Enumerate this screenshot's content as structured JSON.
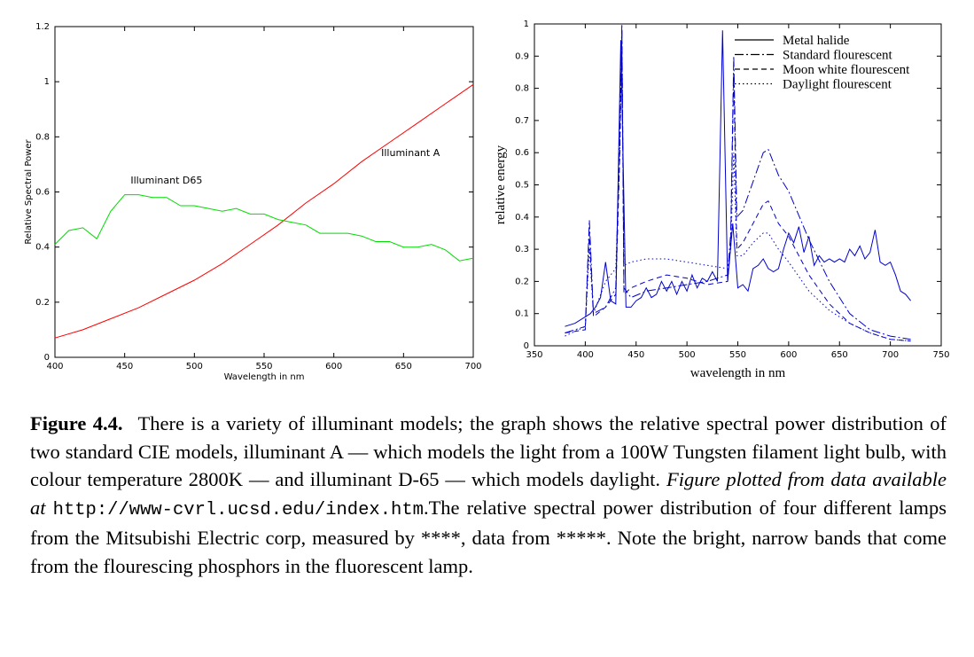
{
  "chart_data": [
    {
      "type": "line",
      "title": "",
      "xlabel": "Wavelength in nm",
      "ylabel": "Relative Spectral Power",
      "xlim": [
        400,
        700
      ],
      "ylim": [
        0,
        1.2
      ],
      "xticks": [
        "400",
        "450",
        "500",
        "550",
        "600",
        "650",
        "700"
      ],
      "yticks": [
        "0",
        "0.2",
        "0.4",
        "0.6",
        "0.8",
        "1",
        "1.2"
      ],
      "grid": false,
      "series": [
        {
          "name": "Illuminant A",
          "color": "#ff0000",
          "x": [
            400,
            420,
            440,
            460,
            480,
            500,
            520,
            540,
            560,
            580,
            600,
            620,
            640,
            660,
            680,
            700
          ],
          "y": [
            0.07,
            0.1,
            0.14,
            0.18,
            0.23,
            0.28,
            0.34,
            0.41,
            0.48,
            0.56,
            0.63,
            0.71,
            0.78,
            0.85,
            0.92,
            0.99
          ]
        },
        {
          "name": "Illuminant D65",
          "color": "#00dd00",
          "x": [
            400,
            410,
            420,
            430,
            440,
            450,
            460,
            470,
            480,
            490,
            500,
            510,
            520,
            530,
            540,
            550,
            560,
            570,
            580,
            590,
            600,
            610,
            620,
            630,
            640,
            650,
            660,
            670,
            680,
            690,
            700
          ],
          "y": [
            0.41,
            0.46,
            0.47,
            0.43,
            0.53,
            0.59,
            0.59,
            0.58,
            0.58,
            0.55,
            0.55,
            0.54,
            0.53,
            0.54,
            0.52,
            0.52,
            0.5,
            0.49,
            0.48,
            0.45,
            0.45,
            0.45,
            0.44,
            0.42,
            0.42,
            0.4,
            0.4,
            0.41,
            0.39,
            0.35,
            0.36
          ]
        }
      ],
      "annotations": [
        {
          "text": "Illuminant D65",
          "x": 480,
          "y": 0.63
        },
        {
          "text": "Illuminant A",
          "x": 655,
          "y": 0.73
        }
      ]
    },
    {
      "type": "line",
      "title": "",
      "xlabel": "wavelength in nm",
      "ylabel": "relative energy",
      "xlim": [
        350,
        750
      ],
      "ylim": [
        0,
        1
      ],
      "xticks": [
        "350",
        "400",
        "450",
        "500",
        "550",
        "600",
        "650",
        "700",
        "750"
      ],
      "yticks": [
        "0",
        "0.1",
        "0.2",
        "0.3",
        "0.4",
        "0.5",
        "0.6",
        "0.7",
        "0.8",
        "0.9",
        "1"
      ],
      "grid": false,
      "legend": "top-right",
      "series": [
        {
          "name": "Metal halide",
          "color": "#0000cc",
          "dash": "solid",
          "x": [
            380,
            390,
            400,
            405,
            410,
            415,
            420,
            425,
            430,
            435,
            440,
            445,
            450,
            455,
            460,
            465,
            470,
            475,
            480,
            485,
            490,
            495,
            500,
            505,
            510,
            515,
            520,
            525,
            530,
            535,
            540,
            545,
            550,
            555,
            560,
            565,
            570,
            575,
            580,
            585,
            590,
            595,
            600,
            605,
            610,
            615,
            620,
            625,
            630,
            635,
            640,
            645,
            650,
            655,
            660,
            665,
            670,
            675,
            680,
            685,
            690,
            695,
            700,
            705,
            710,
            715,
            720
          ],
          "y": [
            0.06,
            0.07,
            0.09,
            0.1,
            0.12,
            0.15,
            0.26,
            0.14,
            0.13,
            0.95,
            0.12,
            0.12,
            0.14,
            0.15,
            0.18,
            0.15,
            0.16,
            0.2,
            0.17,
            0.2,
            0.16,
            0.2,
            0.17,
            0.22,
            0.18,
            0.21,
            0.2,
            0.23,
            0.2,
            0.98,
            0.2,
            0.38,
            0.18,
            0.19,
            0.17,
            0.24,
            0.25,
            0.27,
            0.24,
            0.23,
            0.24,
            0.3,
            0.35,
            0.32,
            0.37,
            0.29,
            0.34,
            0.25,
            0.28,
            0.26,
            0.27,
            0.26,
            0.27,
            0.26,
            0.3,
            0.28,
            0.31,
            0.27,
            0.29,
            0.36,
            0.26,
            0.25,
            0.26,
            0.22,
            0.17,
            0.16,
            0.14
          ]
        },
        {
          "name": "Standard flourescent",
          "color": "#0000cc",
          "dash": "dashdot",
          "x": [
            380,
            400,
            404,
            408,
            420,
            430,
            434,
            436,
            438,
            445,
            460,
            480,
            500,
            520,
            540,
            543,
            546,
            549,
            555,
            565,
            575,
            580,
            590,
            600,
            620,
            640,
            660,
            680,
            700,
            720
          ],
          "y": [
            0.04,
            0.06,
            0.39,
            0.1,
            0.12,
            0.18,
            0.7,
            1.0,
            0.18,
            0.15,
            0.17,
            0.18,
            0.19,
            0.2,
            0.22,
            0.35,
            0.9,
            0.4,
            0.42,
            0.51,
            0.6,
            0.61,
            0.53,
            0.48,
            0.33,
            0.2,
            0.1,
            0.05,
            0.03,
            0.02
          ]
        },
        {
          "name": "Moon white flourescent",
          "color": "#0000cc",
          "dash": "dashed",
          "x": [
            380,
            400,
            404,
            408,
            420,
            430,
            434,
            436,
            438,
            445,
            460,
            480,
            500,
            520,
            540,
            543,
            546,
            549,
            555,
            565,
            575,
            580,
            590,
            600,
            620,
            640,
            660,
            680,
            700,
            720
          ],
          "y": [
            0.04,
            0.05,
            0.35,
            0.09,
            0.12,
            0.16,
            0.6,
            0.98,
            0.16,
            0.18,
            0.2,
            0.22,
            0.21,
            0.19,
            0.2,
            0.32,
            0.85,
            0.3,
            0.32,
            0.38,
            0.44,
            0.45,
            0.38,
            0.34,
            0.22,
            0.13,
            0.07,
            0.04,
            0.02,
            0.015
          ]
        },
        {
          "name": "Daylight flourescent",
          "color": "#0000cc",
          "dash": "dotted",
          "x": [
            380,
            400,
            404,
            408,
            420,
            430,
            434,
            436,
            438,
            445,
            460,
            480,
            500,
            520,
            540,
            543,
            546,
            549,
            555,
            565,
            575,
            580,
            590,
            600,
            620,
            640,
            660,
            680,
            700,
            720
          ],
          "y": [
            0.03,
            0.06,
            0.3,
            0.1,
            0.2,
            0.24,
            0.6,
            0.95,
            0.25,
            0.26,
            0.27,
            0.27,
            0.26,
            0.25,
            0.24,
            0.3,
            0.6,
            0.28,
            0.28,
            0.32,
            0.35,
            0.35,
            0.3,
            0.26,
            0.17,
            0.11,
            0.07,
            0.04,
            0.02,
            0.015
          ]
        }
      ]
    }
  ],
  "caption": {
    "label": "Figure 4.4.",
    "text1": "There is a variety of illuminant models; the graph shows the relative spectral power distribution of two standard CIE models, illuminant A — which models the light from a 100W Tungsten filament light bulb, with colour temperature 2800K — and illuminant D-65 — which models daylight. ",
    "italic": "Figure plotted from data available at",
    "url": "http://www-cvrl.ucsd.edu/index.htm",
    "text2": ".The relative spectral power distribution of four different lamps from the Mitsubishi Electric corp, measured by ****, data from *****. Note the bright, narrow bands that come from the flourescing phosphors in the fluorescent lamp."
  }
}
